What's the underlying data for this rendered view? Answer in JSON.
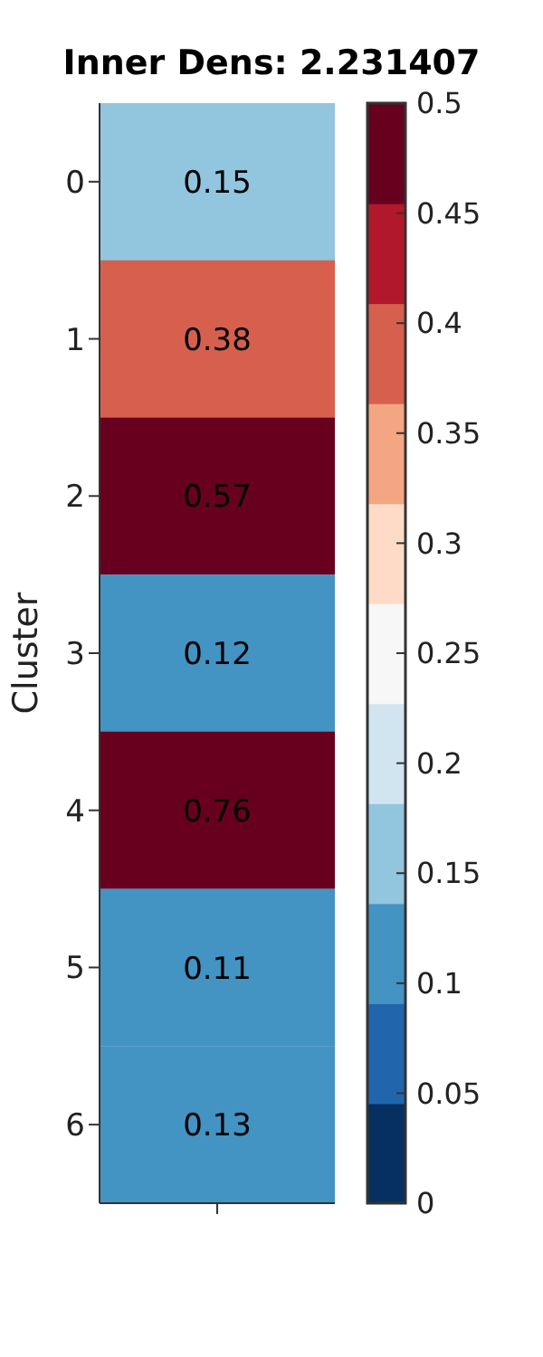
{
  "chart_data": {
    "type": "heatmap",
    "title": "Inner Dens: 2.231407",
    "ylabel": "Cluster",
    "categories": [
      null
    ],
    "y_categories": [
      "0",
      "1",
      "2",
      "3",
      "4",
      "5",
      "6"
    ],
    "cells": [
      [
        0.15
      ],
      [
        0.38
      ],
      [
        0.57
      ],
      [
        0.12
      ],
      [
        0.76
      ],
      [
        0.11
      ],
      [
        0.13
      ]
    ],
    "data_labels": true,
    "clim": [
      0,
      0.5
    ],
    "cticks": [
      0,
      0.05,
      0.1,
      0.15,
      0.2,
      0.25,
      0.3,
      0.35,
      0.4,
      0.45,
      0.5
    ],
    "colors": [
      "#053061",
      "#2166ac",
      "#4393c3",
      "#92c5de",
      "#d1e5f0",
      "#f7f7f7",
      "#fddbc7",
      "#f4a582",
      "#d6604d",
      "#b2182b",
      "#67001f"
    ]
  }
}
